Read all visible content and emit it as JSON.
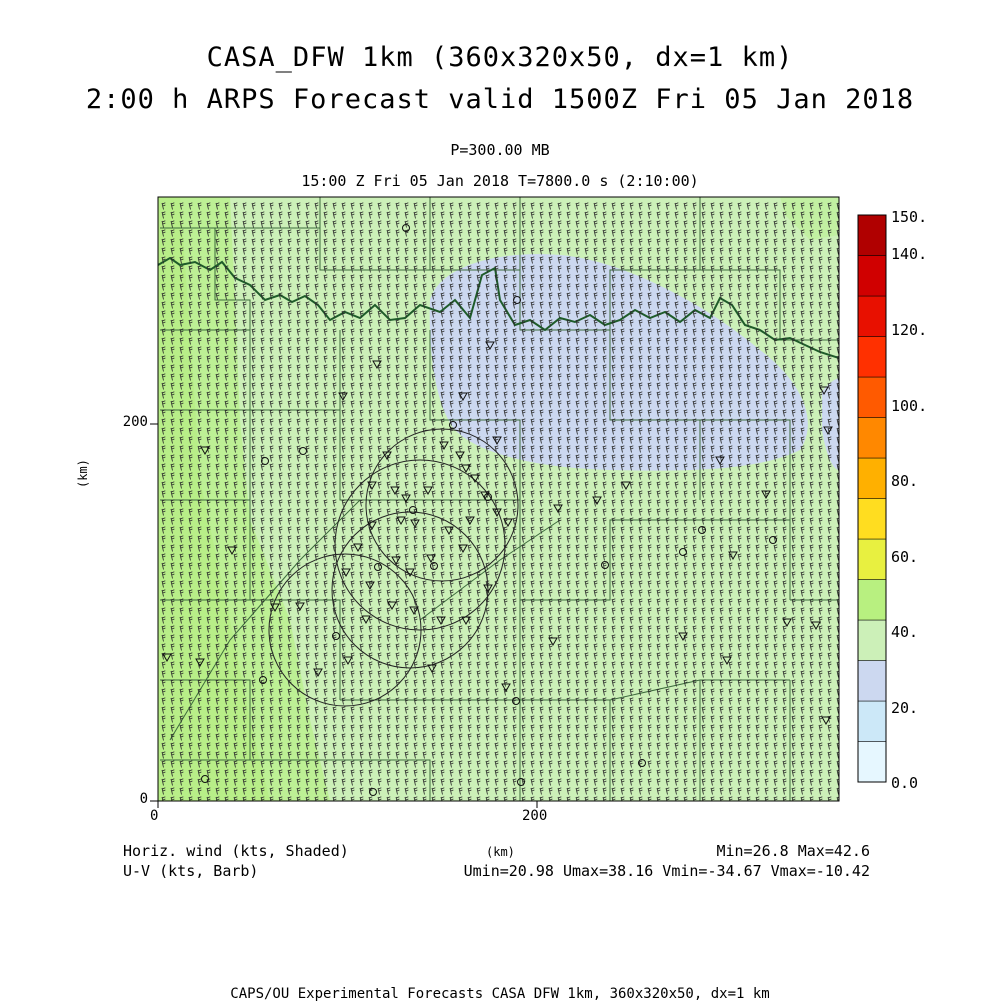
{
  "title": {
    "line1": "CASA_DFW 1km (360x320x50, dx=1 km)",
    "line2": "2:00 h ARPS Forecast valid 1500Z Fri 05 Jan 2018"
  },
  "subtitle": {
    "level": "P=300.00 MB",
    "time": "15:00 Z Fri 05 Jan 2018    T=7800.0 s (2:10:00)"
  },
  "axes": {
    "x_ticks": [
      "0",
      "200"
    ],
    "y_ticks": [
      "200",
      "0"
    ],
    "x_label": "(km)",
    "y_label": "(km)"
  },
  "legend_labels": {
    "shaded": "Horiz. wind (kts, Shaded)",
    "barb": "U-V (kts, Barb)"
  },
  "stats": {
    "minmax": "Min=26.8 Max=42.6",
    "uvminmax": "Umin=20.98 Umax=38.16 Vmin=-34.67 Vmax=-10.42"
  },
  "colorbar": {
    "labels": [
      "150.",
      "140.",
      "120.",
      "100.",
      "80.",
      "60.",
      "40.",
      "20.",
      "0.0"
    ],
    "colors": [
      "#e6f7ff",
      "#cce8f8",
      "#ccd8f0",
      "#ccf0b8",
      "#b8f080",
      "#e8f040",
      "#ffdd20",
      "#ffb000",
      "#ff8800",
      "#ff5a00",
      "#ff3000",
      "#e81000",
      "#d00000",
      "#b00000"
    ]
  },
  "map_colors": {
    "field_high": "#b8f080",
    "field_mid": "#ccf0b8",
    "field_low": "#ccd8f0"
  },
  "footer": "CAPS/OU Experimental Forecasts  CASA DFW 1km, 360x320x50, dx=1 km"
}
